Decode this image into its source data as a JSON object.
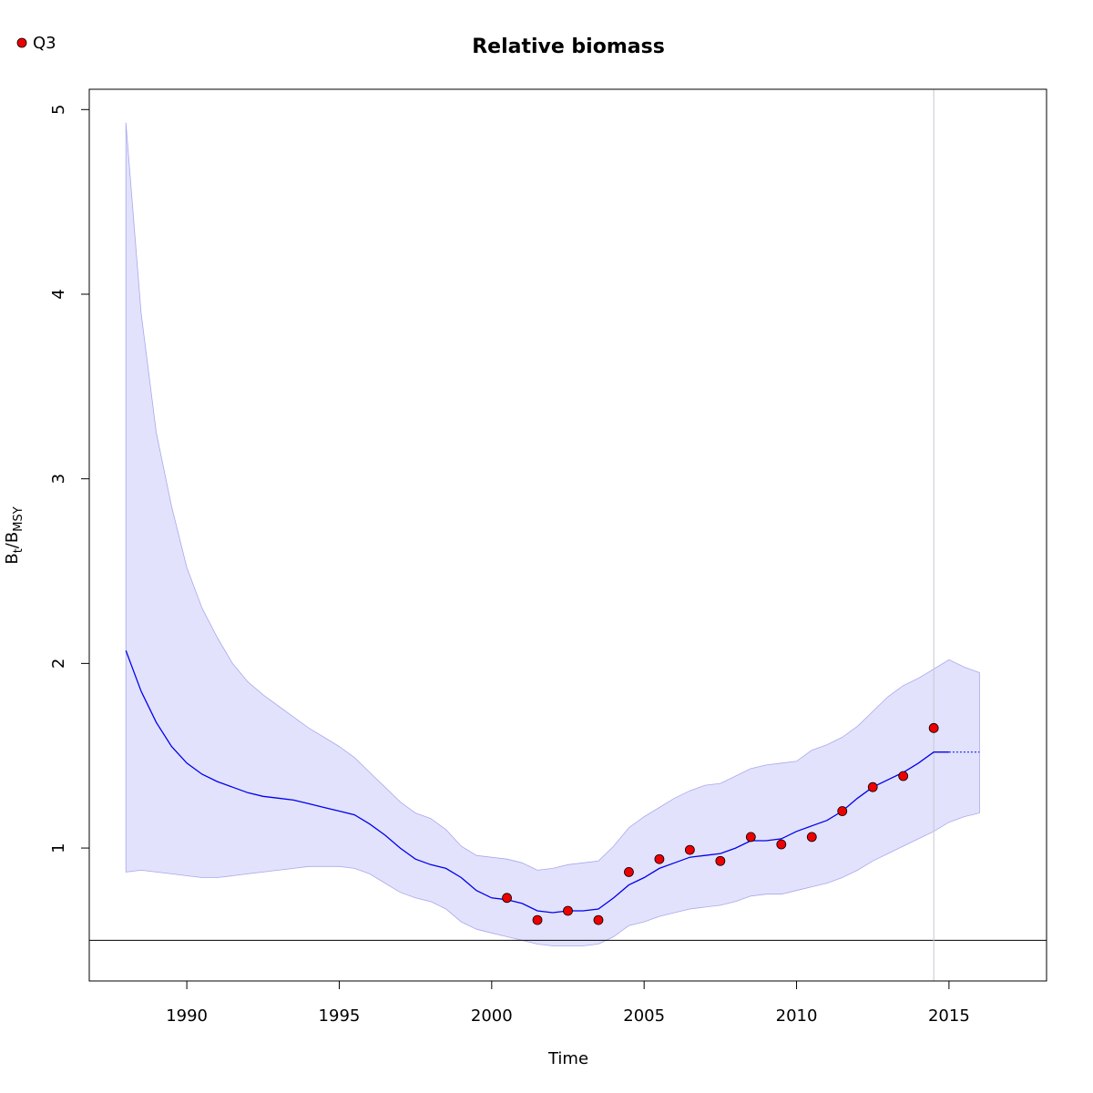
{
  "chart_data": {
    "type": "line",
    "title": "Relative biomass",
    "xlabel": "Time",
    "ylabel": {
      "base": "B",
      "sub1": "t",
      "sep": "/B",
      "sub2": "MSY"
    },
    "xlim": [
      1986.8,
      2018.2
    ],
    "ylim": [
      0.28,
      5.11
    ],
    "x_ticks": [
      1990,
      1995,
      2000,
      2005,
      2010,
      2015
    ],
    "y_ticks": [
      1,
      2,
      3,
      4,
      5
    ],
    "reference_line_y": 0.5,
    "reference_vline_x": 2014.5,
    "colors": {
      "band": "#e2e2fc",
      "band_edge": "#a8a8ee",
      "line": "#0000ee",
      "points": "#ee0000",
      "vline": "#c8c8d0"
    },
    "series": [
      {
        "kind": "estimate",
        "x": [
          1988,
          1988.5,
          1989,
          1989.5,
          1990,
          1990.5,
          1991,
          1991.5,
          1992,
          1992.5,
          1993,
          1993.5,
          1994,
          1994.5,
          1995,
          1995.5,
          1996,
          1996.5,
          1997,
          1997.5,
          1998,
          1998.5,
          1999,
          1999.5,
          2000,
          2000.5,
          2001,
          2001.5,
          2002,
          2002.5,
          2003,
          2003.5,
          2004,
          2004.5,
          2005,
          2005.5,
          2006,
          2006.5,
          2007,
          2007.5,
          2008,
          2008.5,
          2009,
          2009.5,
          2010,
          2010.5,
          2011,
          2011.5,
          2012,
          2012.5,
          2013,
          2013.5,
          2014,
          2014.5,
          2015
        ],
        "y": [
          2.07,
          1.85,
          1.68,
          1.55,
          1.46,
          1.4,
          1.36,
          1.33,
          1.3,
          1.28,
          1.27,
          1.26,
          1.24,
          1.22,
          1.2,
          1.18,
          1.13,
          1.07,
          1.0,
          0.94,
          0.91,
          0.89,
          0.84,
          0.77,
          0.73,
          0.72,
          0.7,
          0.66,
          0.65,
          0.66,
          0.66,
          0.67,
          0.73,
          0.8,
          0.84,
          0.89,
          0.92,
          0.95,
          0.96,
          0.97,
          1.0,
          1.04,
          1.04,
          1.05,
          1.09,
          1.12,
          1.15,
          1.2,
          1.27,
          1.33,
          1.37,
          1.41,
          1.46,
          1.52,
          1.52
        ]
      },
      {
        "kind": "forecast",
        "x": [
          2015,
          2015.5,
          2016
        ],
        "y": [
          1.52,
          1.52,
          1.52
        ]
      },
      {
        "kind": "upper",
        "x": [
          1988,
          1988.5,
          1989,
          1989.5,
          1990,
          1990.5,
          1991,
          1991.5,
          1992,
          1992.5,
          1993,
          1993.5,
          1994,
          1994.5,
          1995,
          1995.5,
          1996,
          1996.5,
          1997,
          1997.5,
          1998,
          1998.5,
          1999,
          1999.5,
          2000,
          2000.5,
          2001,
          2001.5,
          2002,
          2002.5,
          2003,
          2003.5,
          2004,
          2004.5,
          2005,
          2005.5,
          2006,
          2006.5,
          2007,
          2007.5,
          2008,
          2008.5,
          2009,
          2009.5,
          2010,
          2010.5,
          2011,
          2011.5,
          2012,
          2012.5,
          2013,
          2013.5,
          2014,
          2014.5,
          2015,
          2015.5,
          2016
        ],
        "y": [
          4.93,
          3.9,
          3.25,
          2.85,
          2.52,
          2.3,
          2.14,
          2.0,
          1.9,
          1.83,
          1.77,
          1.71,
          1.65,
          1.6,
          1.55,
          1.49,
          1.41,
          1.33,
          1.25,
          1.19,
          1.16,
          1.1,
          1.01,
          0.96,
          0.95,
          0.94,
          0.92,
          0.88,
          0.89,
          0.91,
          0.92,
          0.93,
          1.01,
          1.11,
          1.17,
          1.22,
          1.27,
          1.31,
          1.34,
          1.35,
          1.39,
          1.43,
          1.45,
          1.46,
          1.47,
          1.53,
          1.56,
          1.6,
          1.66,
          1.74,
          1.82,
          1.88,
          1.92,
          1.97,
          2.02,
          1.98,
          1.95
        ]
      },
      {
        "kind": "lower",
        "x": [
          1988,
          1988.5,
          1989,
          1989.5,
          1990,
          1990.5,
          1991,
          1991.5,
          1992,
          1992.5,
          1993,
          1993.5,
          1994,
          1994.5,
          1995,
          1995.5,
          1996,
          1996.5,
          1997,
          1997.5,
          1998,
          1998.5,
          1999,
          1999.5,
          2000,
          2000.5,
          2001,
          2001.5,
          2002,
          2002.5,
          2003,
          2003.5,
          2004,
          2004.5,
          2005,
          2005.5,
          2006,
          2006.5,
          2007,
          2007.5,
          2008,
          2008.5,
          2009,
          2009.5,
          2010,
          2010.5,
          2011,
          2011.5,
          2012,
          2012.5,
          2013,
          2013.5,
          2014,
          2014.5,
          2015,
          2015.5,
          2016
        ],
        "y": [
          0.87,
          0.88,
          0.87,
          0.86,
          0.85,
          0.84,
          0.84,
          0.85,
          0.86,
          0.87,
          0.88,
          0.89,
          0.9,
          0.9,
          0.9,
          0.89,
          0.86,
          0.81,
          0.76,
          0.73,
          0.71,
          0.67,
          0.6,
          0.56,
          0.54,
          0.52,
          0.5,
          0.48,
          0.47,
          0.47,
          0.47,
          0.48,
          0.52,
          0.58,
          0.6,
          0.63,
          0.65,
          0.67,
          0.68,
          0.69,
          0.71,
          0.74,
          0.75,
          0.75,
          0.77,
          0.79,
          0.81,
          0.84,
          0.88,
          0.93,
          0.97,
          1.01,
          1.05,
          1.09,
          1.14,
          1.17,
          1.19
        ]
      },
      {
        "kind": "observations",
        "name": "Q3",
        "x": [
          2000.5,
          2001.5,
          2002.5,
          2003.5,
          2004.5,
          2005.5,
          2006.5,
          2007.5,
          2008.5,
          2009.5,
          2010.5,
          2011.5,
          2012.5,
          2013.5,
          2014.5
        ],
        "y": [
          0.73,
          0.61,
          0.66,
          0.61,
          0.87,
          0.94,
          0.99,
          0.93,
          1.06,
          1.02,
          1.06,
          1.2,
          1.33,
          1.39,
          1.65
        ]
      }
    ],
    "legend": {
      "position": "top-left",
      "entries": [
        "Q3"
      ]
    }
  }
}
